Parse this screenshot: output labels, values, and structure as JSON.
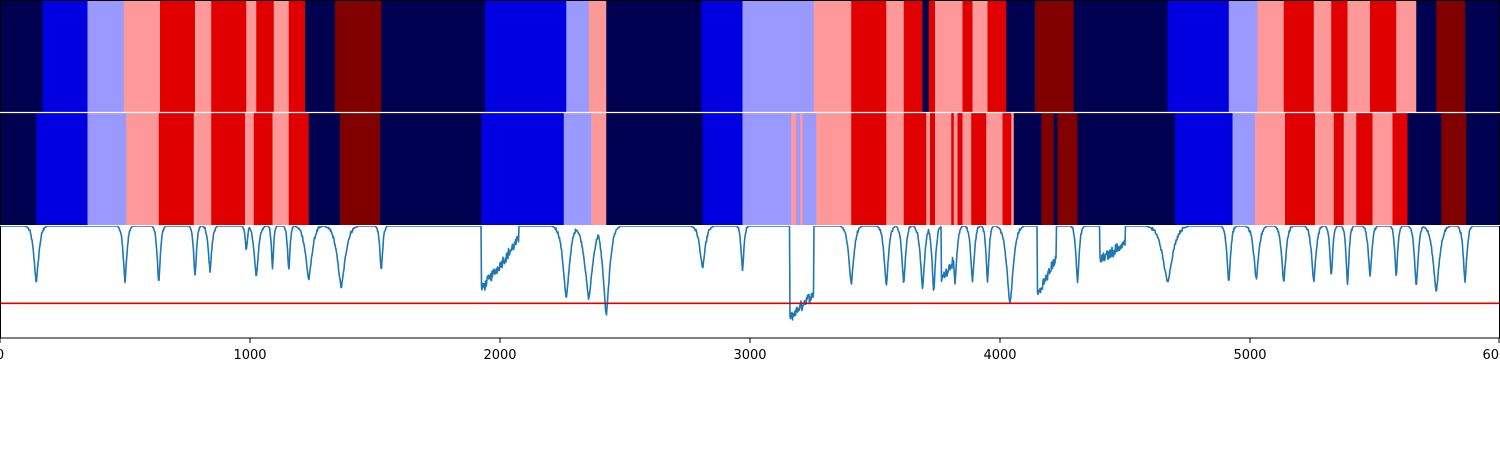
{
  "chart_data": {
    "type": "segmentation",
    "xlim": [
      0,
      6000
    ],
    "xticks": [
      0,
      1000,
      2000,
      3000,
      4000,
      5000,
      6000
    ],
    "xtick_labels": [
      "0",
      "1000",
      "2000",
      "3000",
      "4000",
      "5000",
      "6000"
    ],
    "palette": {
      "0": "#000050",
      "1": "#0000e0",
      "2": "#9999ff",
      "3": "#ff9999",
      "4": "#e00000",
      "5": "#800000"
    },
    "rows": [
      {
        "segments": [
          [
            0,
            170,
            0
          ],
          [
            170,
            350,
            1
          ],
          [
            350,
            495,
            2
          ],
          [
            495,
            640,
            3
          ],
          [
            640,
            780,
            4
          ],
          [
            780,
            845,
            3
          ],
          [
            845,
            985,
            4
          ],
          [
            985,
            1025,
            3
          ],
          [
            1025,
            1095,
            4
          ],
          [
            1095,
            1155,
            3
          ],
          [
            1155,
            1220,
            4
          ],
          [
            1220,
            1340,
            0
          ],
          [
            1340,
            1525,
            5
          ],
          [
            1525,
            1940,
            0
          ],
          [
            1940,
            2265,
            1
          ],
          [
            2265,
            2355,
            2
          ],
          [
            2355,
            2425,
            3
          ],
          [
            2425,
            2805,
            0
          ],
          [
            2805,
            2970,
            1
          ],
          [
            2970,
            3255,
            2
          ],
          [
            3255,
            3405,
            3
          ],
          [
            3405,
            3545,
            4
          ],
          [
            3545,
            3615,
            3
          ],
          [
            3615,
            3690,
            4
          ],
          [
            3690,
            3715,
            0
          ],
          [
            3715,
            3740,
            4
          ],
          [
            3740,
            3850,
            3
          ],
          [
            3850,
            3890,
            4
          ],
          [
            3890,
            3950,
            3
          ],
          [
            3950,
            4025,
            4
          ],
          [
            4025,
            4140,
            0
          ],
          [
            4140,
            4295,
            5
          ],
          [
            4295,
            4670,
            0
          ],
          [
            4670,
            4915,
            1
          ],
          [
            4915,
            5030,
            2
          ],
          [
            5030,
            5135,
            3
          ],
          [
            5135,
            5255,
            4
          ],
          [
            5255,
            5325,
            3
          ],
          [
            5325,
            5390,
            4
          ],
          [
            5390,
            5480,
            3
          ],
          [
            5480,
            5585,
            4
          ],
          [
            5585,
            5665,
            3
          ],
          [
            5665,
            5745,
            0
          ],
          [
            5745,
            5860,
            5
          ],
          [
            5860,
            6000,
            0
          ]
        ]
      },
      {
        "segments": [
          [
            0,
            145,
            0
          ],
          [
            145,
            350,
            1
          ],
          [
            350,
            505,
            2
          ],
          [
            505,
            635,
            3
          ],
          [
            635,
            775,
            4
          ],
          [
            775,
            845,
            3
          ],
          [
            845,
            980,
            4
          ],
          [
            980,
            1015,
            3
          ],
          [
            1015,
            1090,
            4
          ],
          [
            1090,
            1155,
            3
          ],
          [
            1155,
            1235,
            4
          ],
          [
            1235,
            1360,
            0
          ],
          [
            1360,
            1520,
            5
          ],
          [
            1520,
            1925,
            0
          ],
          [
            1925,
            2255,
            1
          ],
          [
            2255,
            2365,
            2
          ],
          [
            2365,
            2425,
            3
          ],
          [
            2425,
            2810,
            0
          ],
          [
            2810,
            2970,
            1
          ],
          [
            2970,
            3165,
            2
          ],
          [
            3165,
            3185,
            3
          ],
          [
            3185,
            3200,
            2
          ],
          [
            3200,
            3210,
            3
          ],
          [
            3210,
            3265,
            2
          ],
          [
            3265,
            3405,
            3
          ],
          [
            3405,
            3545,
            4
          ],
          [
            3545,
            3615,
            3
          ],
          [
            3615,
            3705,
            4
          ],
          [
            3705,
            3720,
            3
          ],
          [
            3720,
            3740,
            4
          ],
          [
            3740,
            3805,
            3
          ],
          [
            3805,
            3815,
            4
          ],
          [
            3815,
            3830,
            3
          ],
          [
            3830,
            3850,
            4
          ],
          [
            3850,
            3885,
            3
          ],
          [
            3885,
            3945,
            4
          ],
          [
            3945,
            4010,
            3
          ],
          [
            4010,
            4045,
            4
          ],
          [
            4045,
            4055,
            3
          ],
          [
            4055,
            4165,
            0
          ],
          [
            4165,
            4215,
            5
          ],
          [
            4215,
            4230,
            0
          ],
          [
            4230,
            4310,
            5
          ],
          [
            4310,
            4700,
            0
          ],
          [
            4700,
            4930,
            1
          ],
          [
            4930,
            5020,
            2
          ],
          [
            5020,
            5140,
            3
          ],
          [
            5140,
            5260,
            4
          ],
          [
            5260,
            5335,
            3
          ],
          [
            5335,
            5375,
            4
          ],
          [
            5375,
            5425,
            3
          ],
          [
            5425,
            5490,
            4
          ],
          [
            5490,
            5570,
            3
          ],
          [
            5570,
            5630,
            4
          ],
          [
            5630,
            5765,
            0
          ],
          [
            5765,
            5865,
            5
          ],
          [
            5865,
            6000,
            0
          ]
        ]
      }
    ],
    "signal": {
      "ylim": [
        0,
        1
      ],
      "color": "#1f77b4",
      "threshold": 0.31,
      "threshold_color": "#e00000",
      "dips": [
        [
          145,
          0.5,
          14
        ],
        [
          500,
          0.5,
          10
        ],
        [
          635,
          0.5,
          9
        ],
        [
          780,
          0.55,
          8
        ],
        [
          840,
          0.6,
          10
        ],
        [
          985,
          0.77,
          6
        ],
        [
          1025,
          0.55,
          12
        ],
        [
          1090,
          0.63,
          6
        ],
        [
          1155,
          0.6,
          7
        ],
        [
          1235,
          0.52,
          18
        ],
        [
          1365,
          0.45,
          22
        ],
        [
          1525,
          0.6,
          8
        ],
        [
          2265,
          0.35,
          18
        ],
        [
          2355,
          0.35,
          22
        ],
        [
          2425,
          0.2,
          18
        ],
        [
          2810,
          0.62,
          15
        ],
        [
          2970,
          0.6,
          8
        ],
        [
          3405,
          0.48,
          14
        ],
        [
          3545,
          0.47,
          12
        ],
        [
          3615,
          0.48,
          10
        ],
        [
          3690,
          0.45,
          12
        ],
        [
          3735,
          0.42,
          10
        ],
        [
          3820,
          0.48,
          10
        ],
        [
          3890,
          0.5,
          10
        ],
        [
          3950,
          0.5,
          8
        ],
        [
          4040,
          0.3,
          18
        ],
        [
          4310,
          0.5,
          9
        ],
        [
          4670,
          0.5,
          28
        ],
        [
          4915,
          0.5,
          10
        ],
        [
          5025,
          0.52,
          14
        ],
        [
          5135,
          0.5,
          12
        ],
        [
          5255,
          0.5,
          12
        ],
        [
          5325,
          0.55,
          8
        ],
        [
          5390,
          0.47,
          8
        ],
        [
          5480,
          0.56,
          10
        ],
        [
          5585,
          0.54,
          8
        ],
        [
          5665,
          0.45,
          10
        ],
        [
          5745,
          0.42,
          18
        ],
        [
          5860,
          0.5,
          10
        ]
      ],
      "bumps": [
        [
          1925,
          2075,
          0.43,
          0.88
        ],
        [
          3160,
          3255,
          0.18,
          0.4
        ],
        [
          4150,
          4225,
          0.38,
          0.72
        ],
        [
          4400,
          4500,
          0.69,
          0.85
        ],
        [
          3765,
          3815,
          0.52,
          0.7
        ]
      ]
    }
  }
}
